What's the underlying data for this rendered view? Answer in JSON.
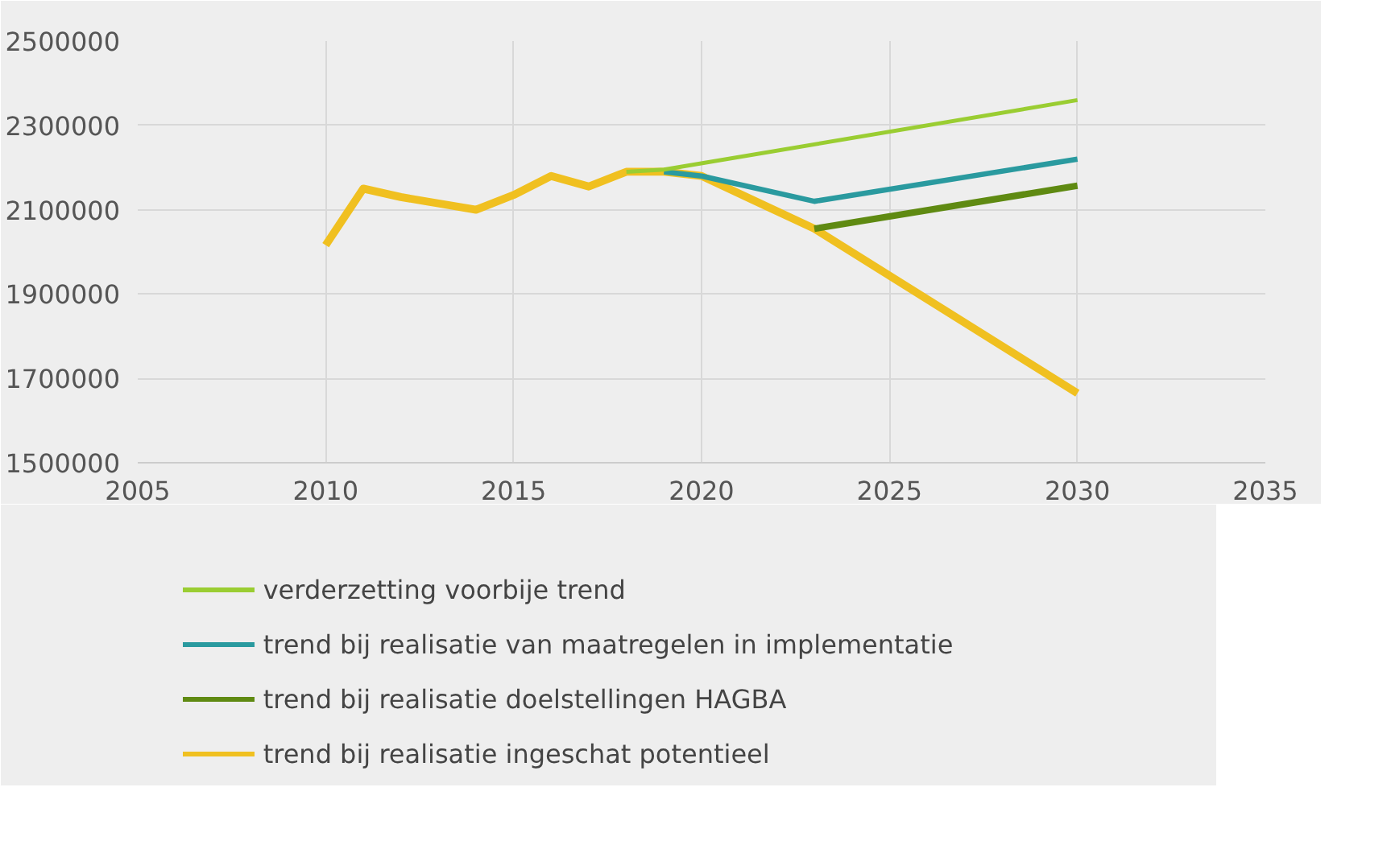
{
  "chart_data": {
    "type": "line",
    "xlim": [
      2005,
      2035
    ],
    "xticks": [
      2005,
      2010,
      2015,
      2020,
      2025,
      2030,
      2035
    ],
    "ylim": [
      1500000,
      2500000
    ],
    "yticks": [
      1500000,
      1700000,
      1900000,
      2100000,
      2300000,
      2500000
    ],
    "grid": true,
    "legend": "bottom",
    "marker": "none",
    "line_style": "solid",
    "series": [
      {
        "name": "verderzetting voorbije trend",
        "color": "#9acd32",
        "x": [
          2018,
          2019,
          2030
        ],
        "values": [
          2190000,
          2195000,
          2360000
        ]
      },
      {
        "name": "trend bij realisatie van maatregelen in implementatie",
        "color": "#2a9a9f",
        "x": [
          2019,
          2020,
          2023,
          2030
        ],
        "values": [
          2190000,
          2180000,
          2120000,
          2220000
        ]
      },
      {
        "name": "trend bij realisatie doelstellingen HAGBA",
        "color": "#5f8a12",
        "x": [
          2023,
          2030
        ],
        "values": [
          2055000,
          2157000
        ]
      },
      {
        "name": "trend bij realisatie ingeschat potentieel",
        "color": "#f0c020",
        "x": [
          2010,
          2011,
          2012,
          2013,
          2014,
          2015,
          2016,
          2017,
          2018,
          2019,
          2020,
          2023,
          2030
        ],
        "values": [
          2016000,
          2150000,
          2130000,
          2115000,
          2100000,
          2135000,
          2180000,
          2155000,
          2190000,
          2190000,
          2180000,
          2055000,
          1665000
        ]
      }
    ]
  }
}
